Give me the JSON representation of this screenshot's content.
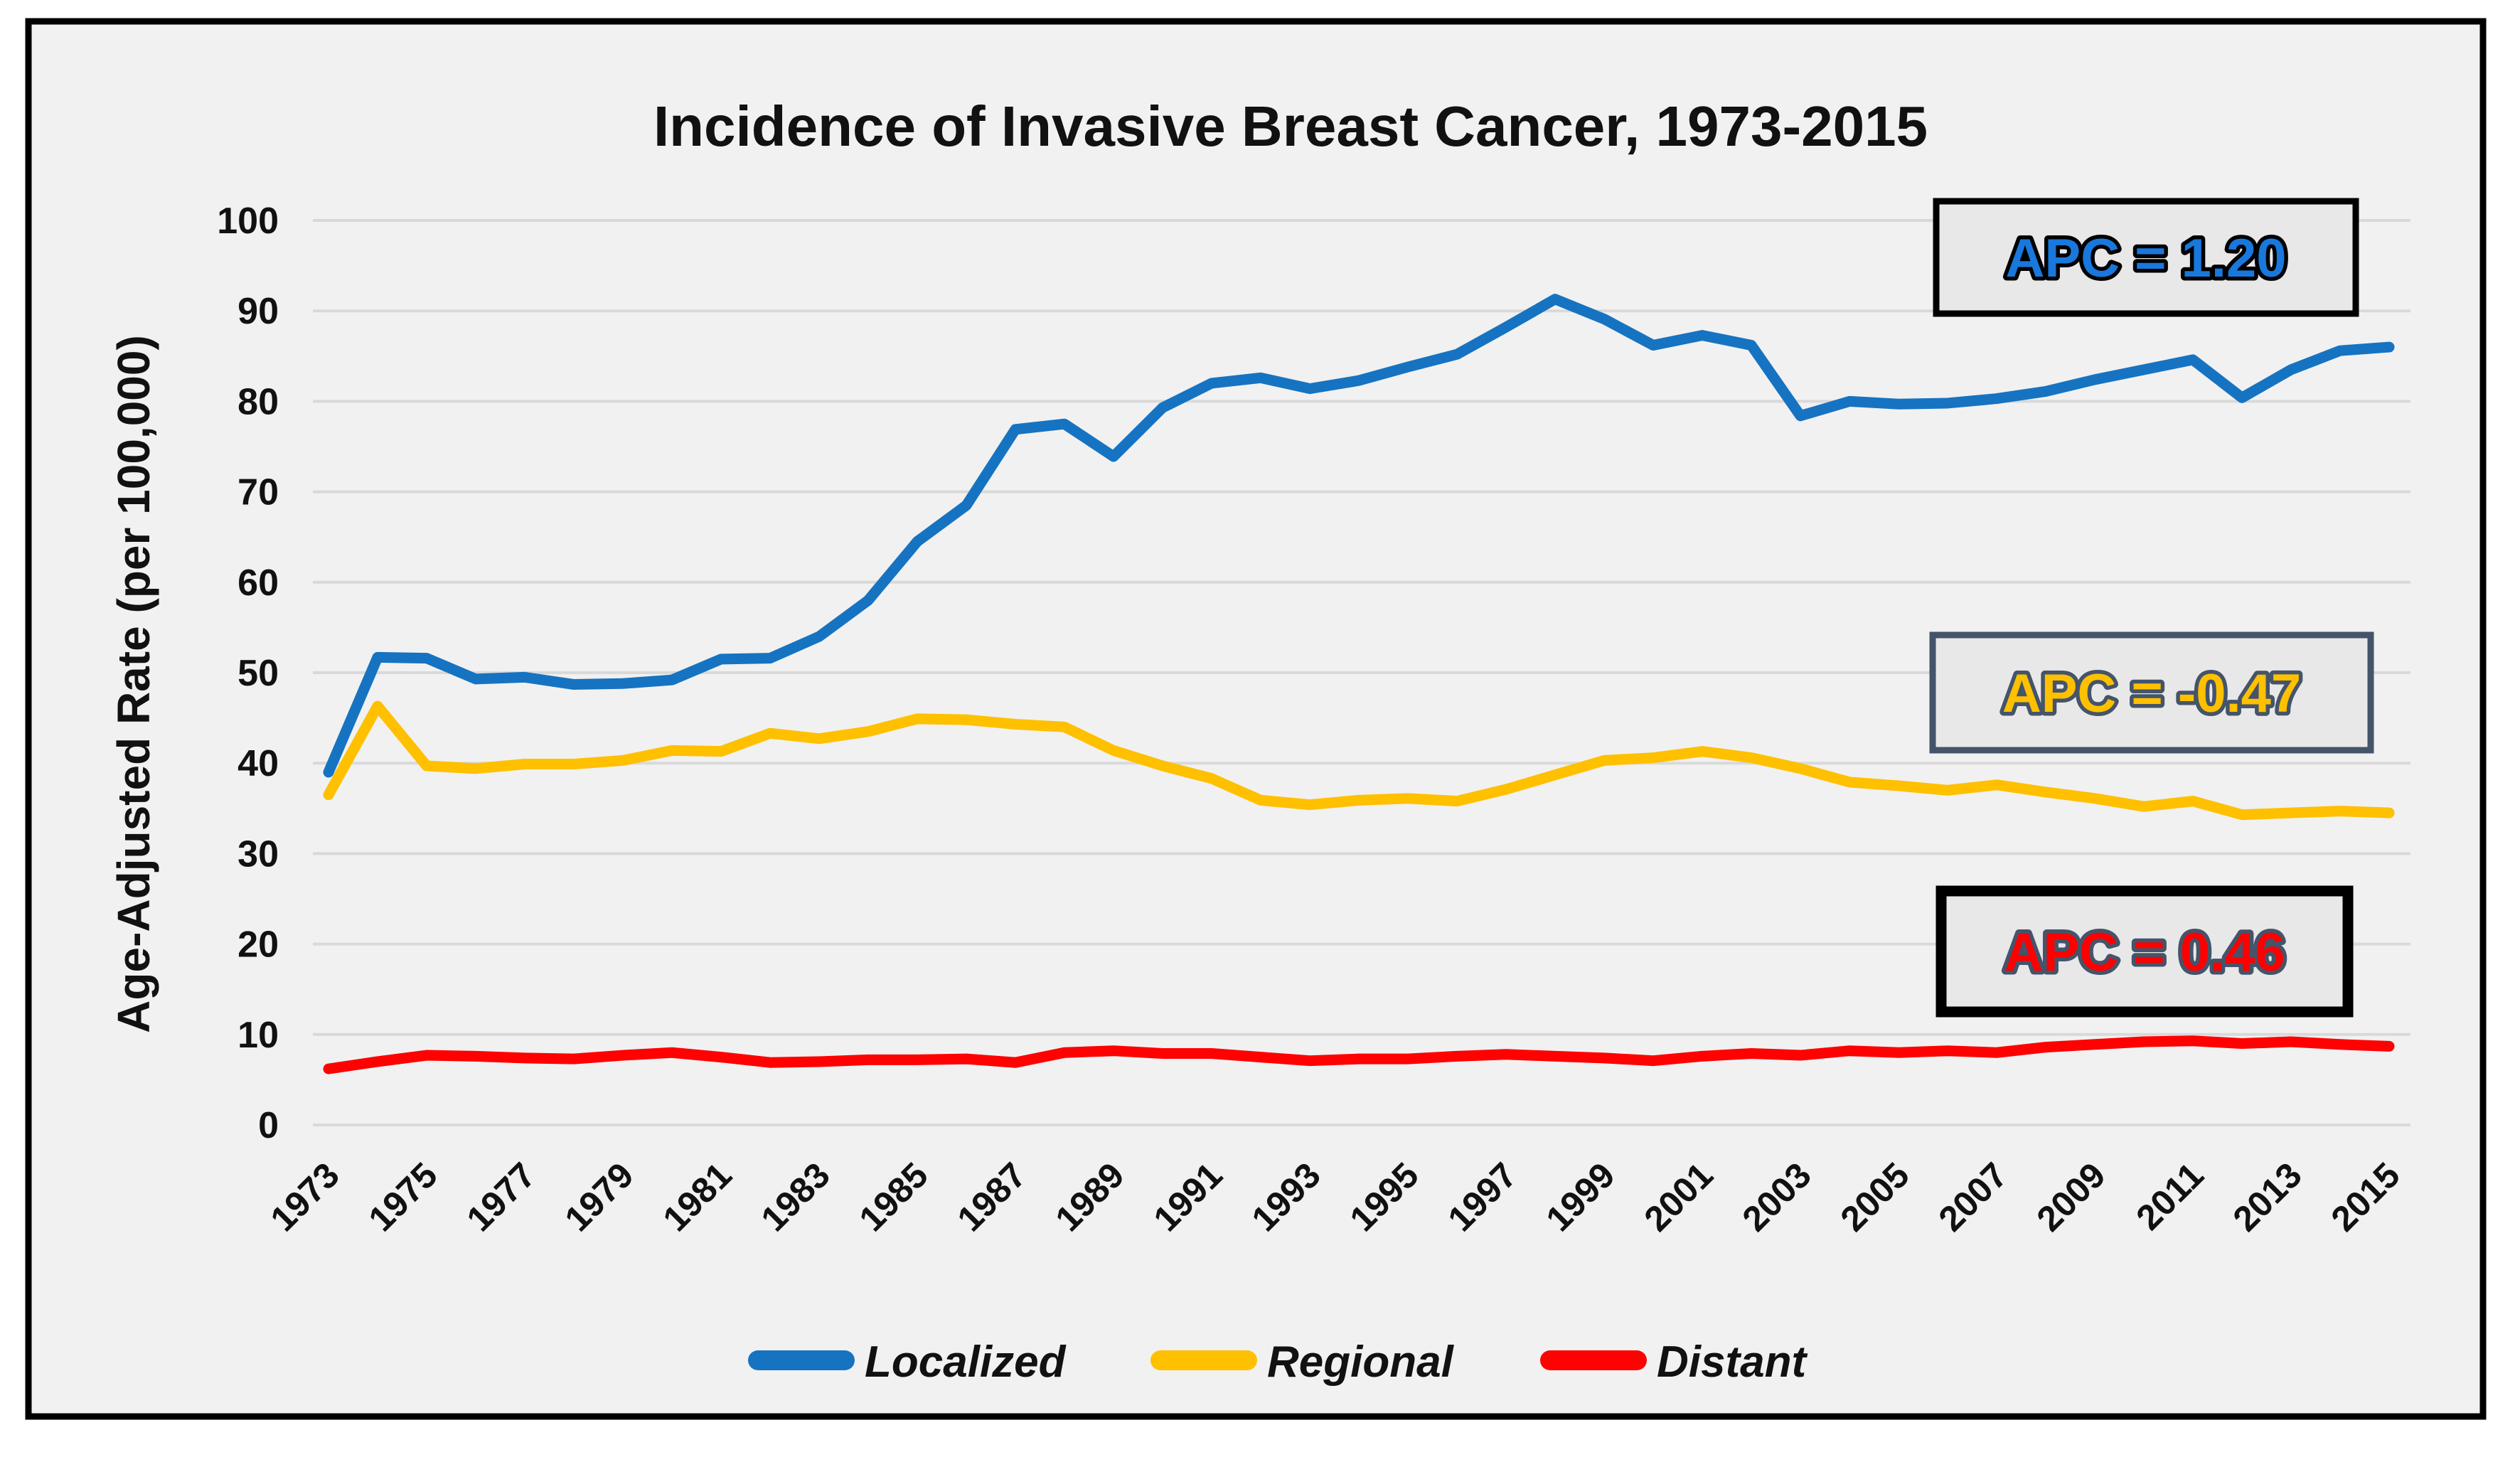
{
  "chart_data": {
    "type": "line",
    "title": "Incidence of Invasive Breast Cancer, 1973-2015",
    "xlabel": "",
    "ylabel": "Age-Adjusted Rate (per 100,000)",
    "ylim": [
      0,
      100
    ],
    "ytick_step": 10,
    "ytick_labels": [
      "0",
      "10",
      "20",
      "30",
      "40",
      "50",
      "60",
      "70",
      "80",
      "90",
      "100"
    ],
    "xtick_labels": [
      "1973",
      "1975",
      "1977",
      "1979",
      "1981",
      "1983",
      "1985",
      "1987",
      "1989",
      "1991",
      "1993",
      "1995",
      "1997",
      "1999",
      "2001",
      "2003",
      "2005",
      "2007",
      "2009",
      "2011",
      "2013",
      "2015"
    ],
    "grid": "horizontal-only",
    "legend_position": "bottom-center",
    "background_color": "#F1F1F1",
    "gridline_color": "#D9D9D9",
    "frame_border_color": "#000000",
    "x": [
      1973,
      1974,
      1975,
      1976,
      1977,
      1978,
      1979,
      1980,
      1981,
      1982,
      1983,
      1984,
      1985,
      1986,
      1987,
      1988,
      1989,
      1990,
      1991,
      1992,
      1993,
      1994,
      1995,
      1996,
      1997,
      1998,
      1999,
      2000,
      2001,
      2002,
      2003,
      2004,
      2005,
      2006,
      2007,
      2008,
      2009,
      2010,
      2011,
      2012,
      2013,
      2014,
      2015
    ],
    "series": [
      {
        "name": "Localized",
        "color": "#1673C1",
        "values": [
          39.0,
          51.7,
          51.6,
          49.3,
          49.5,
          48.7,
          48.8,
          49.2,
          51.5,
          51.6,
          54.0,
          58.0,
          64.5,
          68.5,
          76.9,
          77.5,
          73.9,
          79.3,
          82.0,
          82.6,
          81.4,
          82.3,
          83.8,
          85.2,
          88.2,
          91.3,
          89.1,
          86.2,
          87.3,
          86.2,
          78.4,
          80.0,
          79.7,
          79.8,
          80.3,
          81.1,
          82.4,
          83.5,
          84.6,
          80.4,
          83.5,
          85.6,
          86.0
        ]
      },
      {
        "name": "Regional",
        "color": "#FFC000",
        "values": [
          36.5,
          46.3,
          39.7,
          39.4,
          39.9,
          39.9,
          40.3,
          41.4,
          41.3,
          43.3,
          42.7,
          43.5,
          44.9,
          44.8,
          44.3,
          44.0,
          41.4,
          39.7,
          38.3,
          35.9,
          35.4,
          35.9,
          36.1,
          35.8,
          37.1,
          38.7,
          40.3,
          40.6,
          41.3,
          40.6,
          39.4,
          37.9,
          37.5,
          37.0,
          37.6,
          36.8,
          36.1,
          35.2,
          35.8,
          34.3,
          34.5,
          34.7,
          34.5
        ]
      },
      {
        "name": "Distant",
        "color": "#FE0101",
        "values": [
          6.2,
          7.0,
          7.7,
          7.6,
          7.4,
          7.3,
          7.7,
          8.0,
          7.5,
          6.9,
          7.0,
          7.2,
          7.2,
          7.3,
          6.9,
          8.0,
          8.2,
          7.9,
          7.9,
          7.5,
          7.1,
          7.3,
          7.3,
          7.6,
          7.8,
          7.6,
          7.4,
          7.1,
          7.6,
          7.9,
          7.7,
          8.2,
          8.0,
          8.2,
          8.0,
          8.6,
          8.9,
          9.2,
          9.3,
          9.0,
          9.2,
          8.9,
          8.7
        ]
      }
    ],
    "annotations": [
      {
        "label": "APC = 1.20",
        "series": "Localized",
        "text_color": "#1878DC",
        "outline_color": "#000000",
        "box_fill": "#E9E8E8",
        "box_border_color": "#000000"
      },
      {
        "label": "APC = -0.47",
        "series": "Regional",
        "text_color": "#FFC000",
        "outline_color": "#44546A",
        "box_fill": "#E9E8E8",
        "box_border_color": "#44546A"
      },
      {
        "label": "APC = 0.46",
        "series": "Distant",
        "text_color": "#FF0000",
        "outline_color": "#44546A",
        "box_fill": "#E9E8E8",
        "box_border_color": "#000000"
      }
    ]
  }
}
